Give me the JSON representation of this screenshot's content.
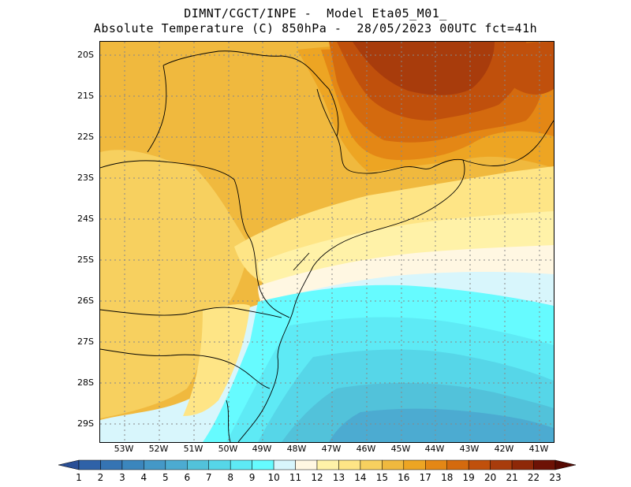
{
  "title": {
    "line1": "DIMNT/CGCT/INPE -  Model Eta05_M01_",
    "line2": "Absolute Temperature (C) 850hPa -  28/05/2023 00UTC fct=41h"
  },
  "map": {
    "lat_ticks": [
      "20S",
      "21S",
      "22S",
      "23S",
      "24S",
      "25S",
      "26S",
      "27S",
      "28S",
      "29S"
    ],
    "lon_ticks": [
      "53W",
      "52W",
      "51W",
      "50W",
      "49W",
      "48W",
      "47W",
      "46W",
      "45W",
      "44W",
      "43W",
      "42W",
      "41W"
    ],
    "gridlines": true
  },
  "colorbar": {
    "labels": [
      "1",
      "2",
      "3",
      "4",
      "5",
      "6",
      "7",
      "8",
      "9",
      "10",
      "11",
      "12",
      "13",
      "14",
      "15",
      "16",
      "17",
      "18",
      "19",
      "20",
      "21",
      "22",
      "23"
    ],
    "colors": [
      "#2a4f96",
      "#2f62a8",
      "#3574b3",
      "#3b86bd",
      "#4498c7",
      "#4cabd1",
      "#52c2da",
      "#56d6e8",
      "#5eeaf5",
      "#66fbff",
      "#d8f6fc",
      "#fff7e2",
      "#fff2a8",
      "#fee586",
      "#f7d05f",
      "#f0b93e",
      "#eda523",
      "#e48715",
      "#d46a0e",
      "#c0500c",
      "#a83c0c",
      "#8e2808",
      "#6d1205",
      "#560a03"
    ],
    "extend": "both"
  }
}
